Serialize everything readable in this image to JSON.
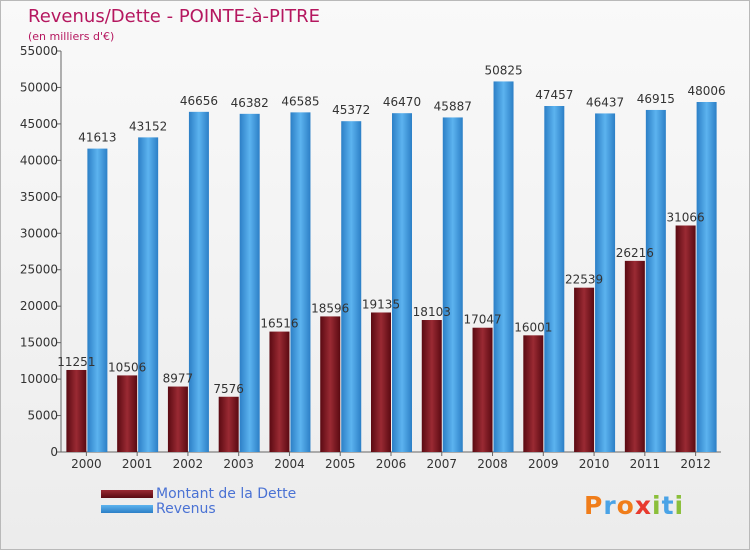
{
  "header": {
    "title": "Revenus/Dette - POINTE-à-PITRE",
    "subtitle": "(en milliers d'€)"
  },
  "colors": {
    "title": "#b5175f",
    "dette": "#7a0f1a",
    "revenus": "#4aa3e6",
    "legend_text": "#4a72d4"
  },
  "chart_data": {
    "type": "bar",
    "title": "Revenus/Dette - POINTE-à-PITRE",
    "ylabel": "(en milliers d'€)",
    "xlabel": "",
    "ylim": [
      0,
      55000
    ],
    "yticks": [
      0,
      5000,
      10000,
      15000,
      20000,
      25000,
      30000,
      35000,
      40000,
      45000,
      50000,
      55000
    ],
    "grid": false,
    "legend_position": "bottom-left",
    "categories": [
      "2000",
      "2001",
      "2002",
      "2003",
      "2004",
      "2005",
      "2006",
      "2007",
      "2008",
      "2009",
      "2010",
      "2011",
      "2012"
    ],
    "series": [
      {
        "name": "Montant de la Dette",
        "values": [
          11251,
          10506,
          8977,
          7576,
          16516,
          18596,
          19135,
          18103,
          17047,
          16001,
          22539,
          26216,
          31066
        ],
        "labels": [
          "11251",
          "10506",
          "8977",
          "7576",
          "16516",
          "18596",
          "19135",
          "18103",
          "17047",
          "16001",
          "22539",
          "26216",
          "31066"
        ]
      },
      {
        "name": "Revenus",
        "values": [
          41613,
          43152,
          46656,
          46382,
          46585,
          45372,
          46470,
          45887,
          50825,
          47457,
          46437,
          46915,
          48006
        ],
        "labels": [
          "41613",
          "43152",
          "46656",
          "46382",
          "46585",
          "45372",
          "46470",
          "45887",
          "50825",
          "47457",
          "46437",
          "46915",
          "48006"
        ]
      }
    ]
  },
  "legend": [
    {
      "label": "Montant de la Dette",
      "color": "#7a0f1a"
    },
    {
      "label": "Revenus",
      "color": "#4aa3e6"
    }
  ],
  "logo": {
    "letters": [
      "P",
      "r",
      "o",
      "x",
      "i",
      "t",
      "i"
    ],
    "colors": [
      "#f07d1a",
      "#4aa3e6",
      "#f07d1a",
      "#e83a2e",
      "#8bbf3a",
      "#4aa3e6",
      "#8bbf3a"
    ]
  }
}
